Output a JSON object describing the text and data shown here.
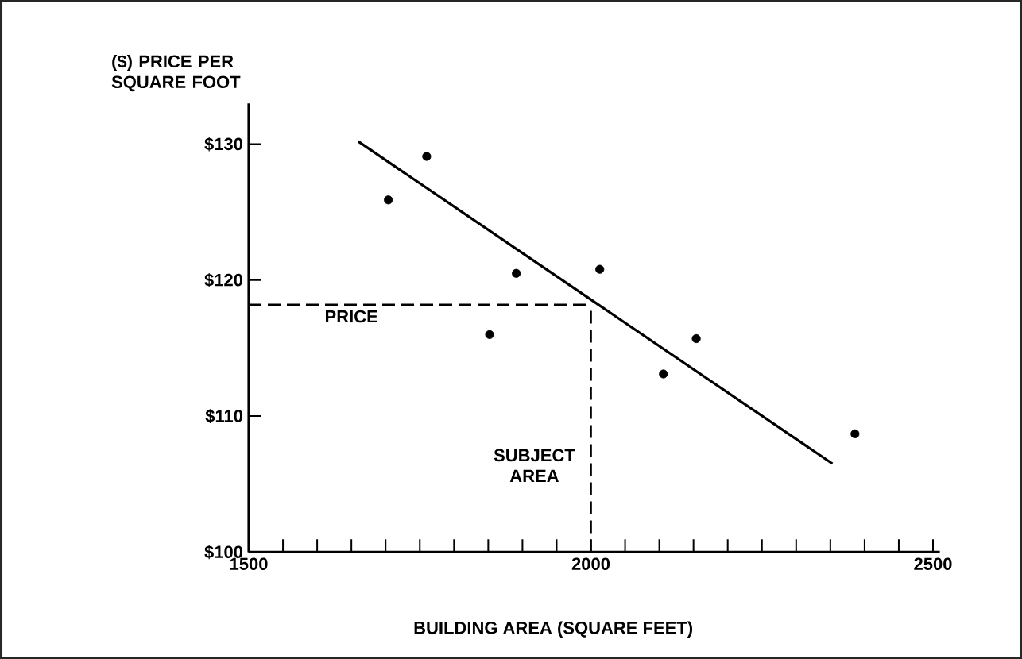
{
  "chart_data": {
    "type": "scatter",
    "xlabel": "BUILDING AREA (SQUARE FEET)",
    "ylabel": "($) PRICE PER SQUARE FOOT",
    "xlim": [
      1500,
      2510
    ],
    "ylim": [
      100,
      133
    ],
    "xticks": [
      1500,
      {
        "value": 1550,
        "label": null
      },
      {
        "value": 1600,
        "label": null
      },
      {
        "value": 1650,
        "label": null
      },
      {
        "value": 1700,
        "label": null
      },
      {
        "value": 1750,
        "label": null
      },
      {
        "value": 1800,
        "label": null
      },
      {
        "value": 1850,
        "label": null
      },
      {
        "value": 1900,
        "label": null
      },
      {
        "value": 1950,
        "label": null
      },
      2000,
      {
        "value": 2050,
        "label": null
      },
      {
        "value": 2100,
        "label": null
      },
      {
        "value": 2150,
        "label": null
      },
      {
        "value": 2200,
        "label": null
      },
      {
        "value": 2250,
        "label": null
      },
      {
        "value": 2300,
        "label": null
      },
      {
        "value": 2350,
        "label": null
      },
      {
        "value": 2400,
        "label": null
      },
      {
        "value": 2450,
        "label": null
      },
      2500
    ],
    "yticks": [
      {
        "value": 100,
        "label": "$100"
      },
      {
        "value": 110,
        "label": "$110"
      },
      {
        "value": 120,
        "label": "$120"
      },
      {
        "value": 130,
        "label": "$130"
      }
    ],
    "grid": false,
    "series": [
      {
        "color": "#000000",
        "marker": "circle",
        "x": [
          1704,
          1760,
          1852,
          1891,
          2013,
          2106,
          2154,
          2386
        ],
        "values": [
          125.9,
          129.1,
          116.0,
          120.5,
          120.8,
          113.1,
          115.7,
          108.7
        ]
      },
      {
        "type": "line",
        "color": "#000000",
        "marker": "none",
        "line_style": "solid",
        "x": [
          1660,
          2353
        ],
        "values": [
          130.2,
          106.5
        ]
      }
    ],
    "ref_lines": [
      {
        "axis": "y",
        "value": 118.2,
        "label": "PRICE",
        "line_style": "dashed"
      },
      {
        "axis": "x",
        "value": 2000,
        "label": "SUBJECT AREA",
        "line_style": "dashed"
      }
    ]
  }
}
